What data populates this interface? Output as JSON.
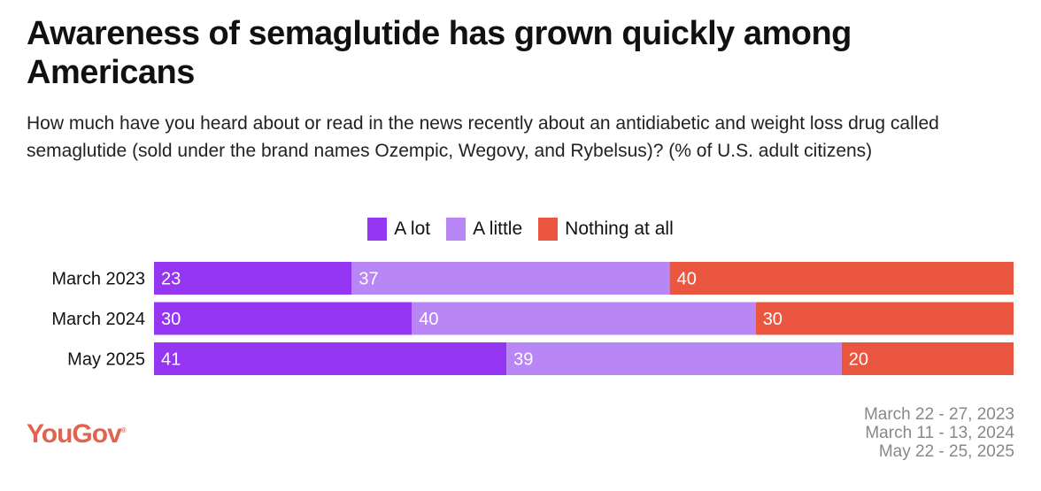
{
  "chart_data": {
    "type": "bar",
    "orientation": "horizontal-stacked",
    "title": "Awareness of semaglutide has grown quickly among Americans",
    "subtitle": "How much have you heard about or read in the news recently about an antidiabetic and weight loss drug called semaglutide (sold under the brand names Ozempic, Wegovy, and Rybelsus)? (% of U.S. adult citizens)",
    "categories": [
      "March 2023",
      "March 2024",
      "May 2025"
    ],
    "series": [
      {
        "name": "A lot",
        "color": "#9436f2",
        "values": [
          23,
          30,
          41
        ]
      },
      {
        "name": "A little",
        "color": "#b986f6",
        "values": [
          37,
          40,
          39
        ]
      },
      {
        "name": "Nothing at all",
        "color": "#eb5640",
        "values": [
          40,
          30,
          20
        ]
      }
    ],
    "xlim": [
      0,
      100
    ],
    "legend": "top-center",
    "grid": false
  },
  "footer": {
    "logo": "YouGov",
    "dates": [
      "March 22 - 27, 2023",
      "March 11 - 13, 2024",
      "May 22 - 25, 2025"
    ]
  }
}
